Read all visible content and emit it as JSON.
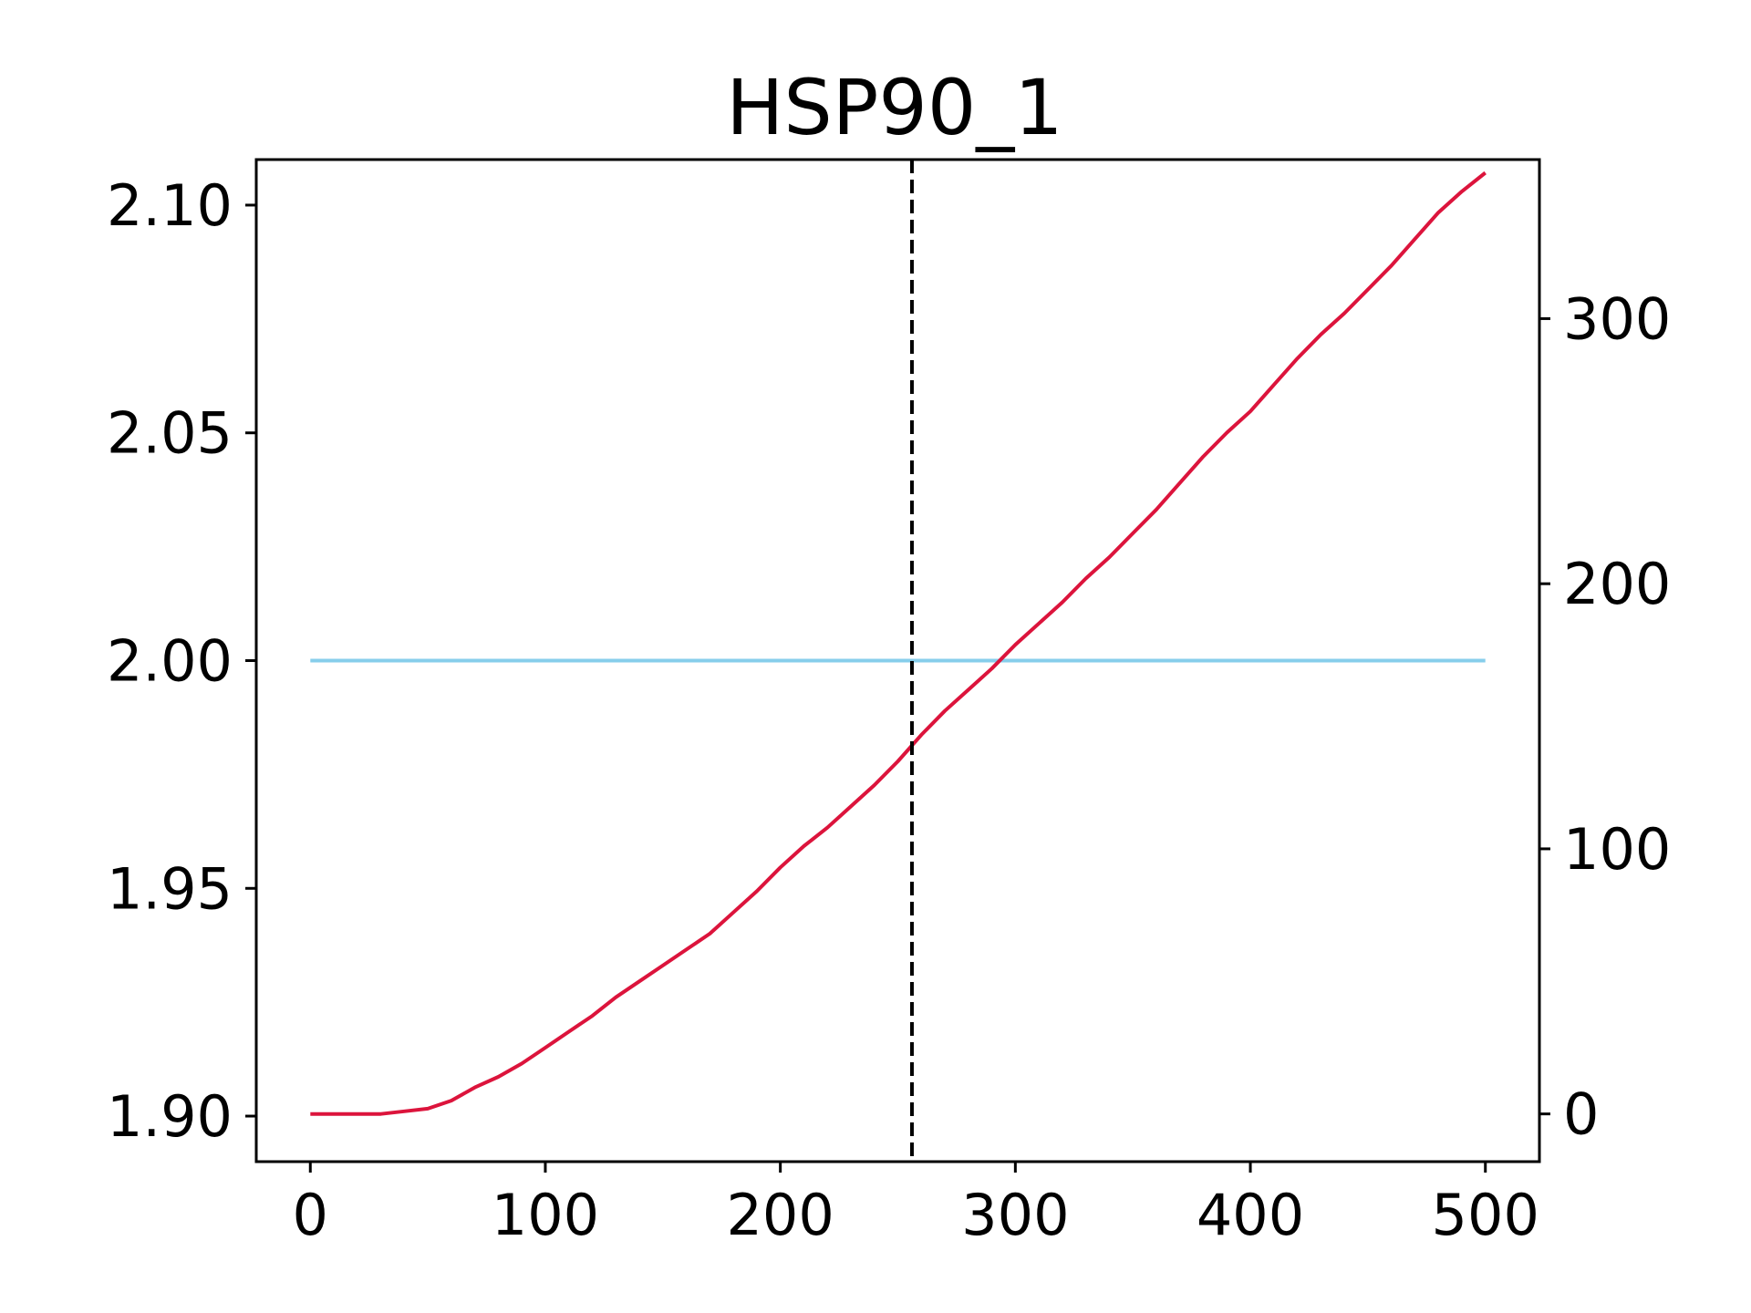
{
  "chart_data": {
    "type": "line",
    "title": "HSP90_1",
    "xlabel": "",
    "ylabel": "",
    "y2label": "",
    "xlim": [
      -23,
      523
    ],
    "ylim": [
      1.89,
      2.11
    ],
    "y2lim": [
      -18,
      360
    ],
    "x_ticks": [
      0,
      100,
      200,
      300,
      400,
      500
    ],
    "y_ticks": [
      1.9,
      1.95,
      2.0,
      2.05,
      2.1
    ],
    "y_tick_labels": [
      "1.90",
      "1.95",
      "2.00",
      "2.05",
      "2.10"
    ],
    "y2_ticks": [
      0,
      100,
      200,
      300
    ],
    "grid": false,
    "legend": "none",
    "vline": {
      "x": 256,
      "color": "#000000",
      "style": "dashed"
    },
    "series": [
      {
        "axis": "left",
        "color": "#87CEEB",
        "x": [
          0,
          500
        ],
        "y": [
          2.0,
          2.0
        ]
      },
      {
        "axis": "right",
        "color": "#DC143C",
        "x": [
          0,
          10,
          20,
          30,
          40,
          50,
          60,
          70,
          80,
          90,
          100,
          110,
          120,
          130,
          140,
          150,
          160,
          170,
          180,
          190,
          200,
          210,
          220,
          230,
          240,
          250,
          260,
          270,
          280,
          290,
          300,
          310,
          320,
          330,
          340,
          350,
          360,
          370,
          380,
          390,
          400,
          410,
          420,
          430,
          440,
          450,
          460,
          470,
          480,
          490,
          500
        ],
        "y": [
          0,
          0,
          0,
          0,
          1,
          2,
          5,
          10,
          14,
          19,
          25,
          31,
          37,
          44,
          50,
          56,
          62,
          68,
          76,
          84,
          93,
          101,
          108,
          116,
          124,
          133,
          143,
          152,
          160,
          168,
          177,
          185,
          193,
          202,
          210,
          219,
          228,
          238,
          248,
          257,
          265,
          275,
          285,
          294,
          302,
          311,
          320,
          330,
          340,
          348,
          355
        ]
      }
    ]
  }
}
